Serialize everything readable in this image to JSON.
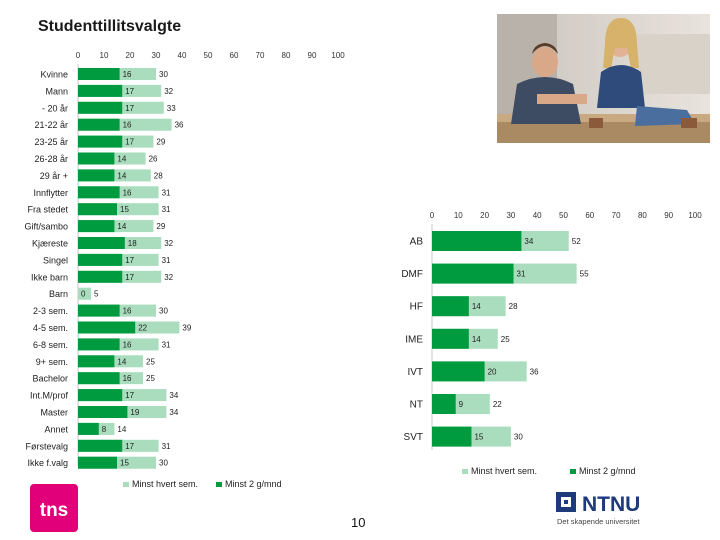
{
  "page": {
    "title": "Studenttillitsvalgte",
    "page_number": "10",
    "logo_left": "tns",
    "logo_right_name": "NTNU",
    "logo_right_tagline": "Det skapende universitet"
  },
  "colors": {
    "dark": "#009a3f",
    "light": "#a9ddbd",
    "axis": "#c8c8c8"
  },
  "chart_data": [
    {
      "type": "bar",
      "orientation": "horizontal",
      "title": "",
      "xlim": [
        0,
        100
      ],
      "xticks": [
        "0",
        "10",
        "20",
        "30",
        "40",
        "50",
        "60",
        "70",
        "80",
        "90",
        "100"
      ],
      "categories": [
        "Kvinne",
        "Mann",
        "- 20 år",
        "21-22 år",
        "23-25 år",
        "26-28 år",
        "29 år +",
        "Innflytter",
        "Fra stedet",
        "Gift/sambo",
        "Kjæreste",
        "Singel",
        "Ikke barn",
        "Barn",
        "2-3 sem.",
        "4-5 sem.",
        "6-8 sem.",
        "9+ sem.",
        "Bachelor",
        "Int.M/prof",
        "Master",
        "Annet",
        "Førstevalg",
        "Ikke f.valg"
      ],
      "series": [
        {
          "name": "Minst hvert sem.",
          "values": [
            30,
            32,
            33,
            36,
            29,
            26,
            28,
            31,
            31,
            29,
            32,
            31,
            32,
            5,
            30,
            39,
            31,
            25,
            25,
            34,
            34,
            14,
            31,
            30
          ]
        },
        {
          "name": "Minst 2 g/mnd",
          "values": [
            16,
            17,
            17,
            16,
            17,
            14,
            14,
            16,
            15,
            14,
            18,
            17,
            17,
            0,
            16,
            22,
            16,
            14,
            16,
            17,
            19,
            8,
            17,
            15
          ]
        }
      ],
      "legend": "bottom"
    },
    {
      "type": "bar",
      "orientation": "horizontal",
      "title": "",
      "xlim": [
        0,
        100
      ],
      "xticks": [
        "0",
        "10",
        "20",
        "30",
        "40",
        "50",
        "60",
        "70",
        "80",
        "90",
        "100"
      ],
      "categories": [
        "AB",
        "DMF",
        "HF",
        "IME",
        "IVT",
        "NT",
        "SVT"
      ],
      "series": [
        {
          "name": "Minst hvert sem.",
          "values": [
            52,
            55,
            28,
            25,
            36,
            22,
            30
          ]
        },
        {
          "name": "Minst 2 g/mnd",
          "values": [
            34,
            31,
            14,
            14,
            20,
            9,
            15
          ]
        }
      ],
      "legend": "bottom-right"
    }
  ]
}
